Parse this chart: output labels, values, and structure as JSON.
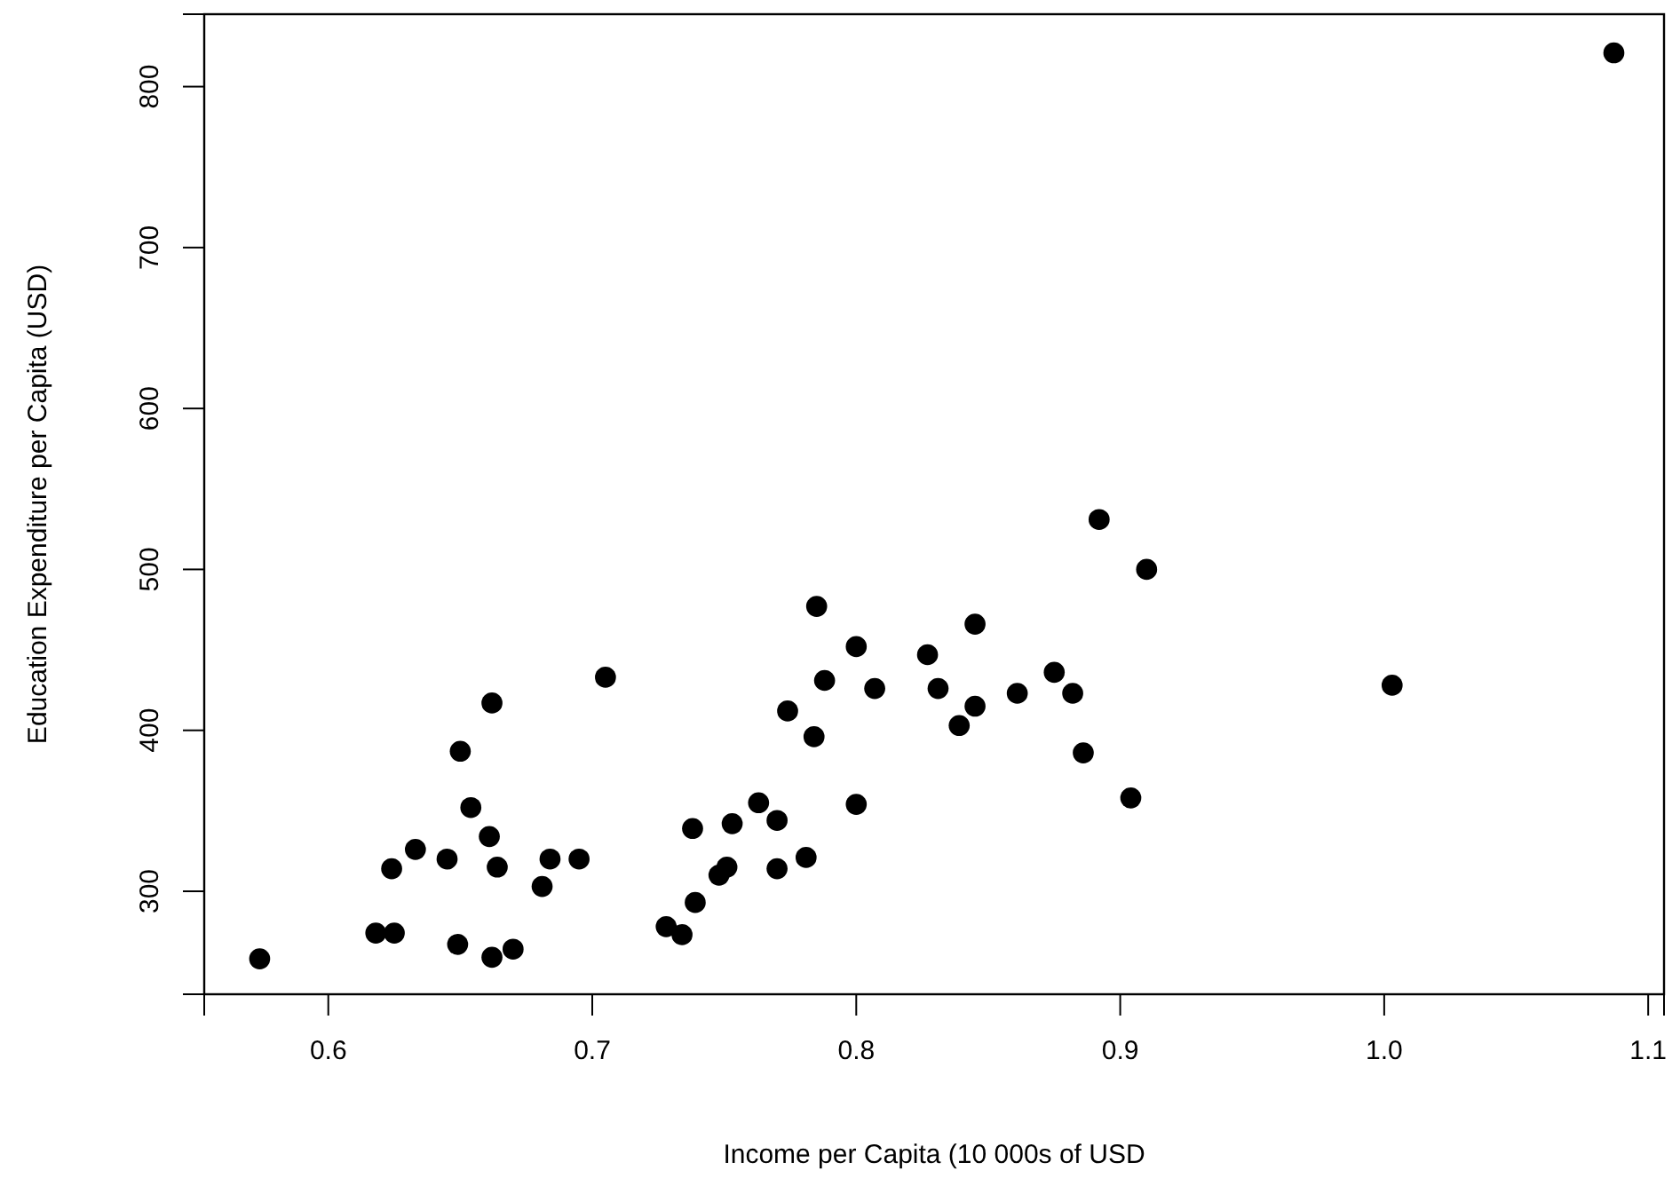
{
  "chart_data": {
    "type": "scatter",
    "xlabel": "Income per Capita (10 000s of USD",
    "ylabel": "Education Expenditure per Capita (USD)",
    "xlim": [
      0.553,
      1.106
    ],
    "ylim": [
      236,
      845
    ],
    "xticks": [
      0.6,
      0.7,
      0.8,
      0.9,
      {
        "value": 1.0,
        "label": "1.0"
      },
      1.1
    ],
    "yticks": [
      300,
      400,
      500,
      600,
      700,
      800
    ],
    "grid": false,
    "marker": "circle",
    "series": [
      {
        "color": "#000000",
        "x": [
          0.574,
          0.618,
          0.625,
          0.624,
          0.633,
          0.645,
          0.65,
          0.649,
          0.654,
          0.661,
          0.662,
          0.664,
          0.662,
          0.67,
          0.681,
          0.684,
          0.695,
          0.705,
          0.728,
          0.734,
          0.738,
          0.739,
          0.748,
          0.751,
          0.753,
          0.763,
          0.77,
          0.77,
          0.774,
          0.781,
          0.784,
          0.785,
          0.788,
          0.8,
          0.8,
          0.807,
          0.892,
          0.91,
          0.845,
          0.827,
          0.831,
          0.845,
          0.839,
          0.861,
          0.875,
          0.882,
          0.886,
          0.904,
          1.003,
          1.087
        ],
        "values": [
          258,
          274,
          274,
          314,
          326,
          320,
          387,
          267,
          352,
          334,
          417,
          315,
          259,
          264,
          303,
          320,
          320,
          433,
          278,
          273,
          339,
          293,
          310,
          315,
          342,
          355,
          344,
          314,
          412,
          321,
          396,
          477,
          431,
          452,
          354,
          426,
          531,
          500,
          466,
          447,
          426,
          415,
          403,
          423,
          436,
          423,
          386,
          358,
          428,
          821
        ]
      }
    ]
  }
}
